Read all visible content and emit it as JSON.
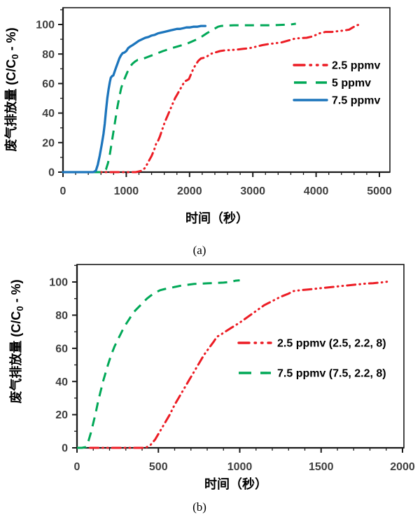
{
  "page": {
    "background": "#ffffff"
  },
  "chart_data": [
    {
      "id": "a",
      "type": "line",
      "caption": "(a)",
      "xlabel": "时间（秒）",
      "ylabel": "废气排放量 (C/C0 - %)",
      "ylabel_rich": {
        "pre": "废气排放量 (C/C",
        "sub": "0",
        "post": " - %)"
      },
      "xlim": [
        0,
        5170
      ],
      "ylim": [
        0,
        110
      ],
      "x_ticks": [
        0,
        1000,
        2000,
        3000,
        4000,
        5000
      ],
      "y_ticks": [
        0,
        20,
        40,
        60,
        80,
        100
      ],
      "x_minor_step": 200,
      "y_minor_step": 10,
      "grid": false,
      "legend_position": "inside-right",
      "axis_color": "#1a1a1a",
      "tick_label_color": "#3f3f3f",
      "label_color": "#000000",
      "series": [
        {
          "name": "2.5 ppmv",
          "color": "#EC1C24",
          "dash": "dash-dot-dot",
          "points": [
            [
              400,
              0
            ],
            [
              600,
              0
            ],
            [
              800,
              0
            ],
            [
              1000,
              0
            ],
            [
              1150,
              0
            ],
            [
              1250,
              1
            ],
            [
              1300,
              3
            ],
            [
              1350,
              7
            ],
            [
              1400,
              11
            ],
            [
              1440,
              15
            ],
            [
              1470,
              19
            ],
            [
              1490,
              20
            ],
            [
              1530,
              24
            ],
            [
              1570,
              29
            ],
            [
              1610,
              34
            ],
            [
              1650,
              38
            ],
            [
              1690,
              42
            ],
            [
              1730,
              46
            ],
            [
              1770,
              50
            ],
            [
              1810,
              53
            ],
            [
              1850,
              56
            ],
            [
              1890,
              59
            ],
            [
              1920,
              61.5
            ],
            [
              1950,
              62
            ],
            [
              1990,
              63
            ],
            [
              2020,
              66
            ],
            [
              2060,
              70
            ],
            [
              2100,
              73
            ],
            [
              2140,
              75.5
            ],
            [
              2180,
              77
            ],
            [
              2230,
              77.5
            ],
            [
              2280,
              78.5
            ],
            [
              2330,
              80
            ],
            [
              2400,
              81
            ],
            [
              2480,
              82
            ],
            [
              2560,
              82.5
            ],
            [
              2650,
              82.7
            ],
            [
              2750,
              83
            ],
            [
              2850,
              83.5
            ],
            [
              2950,
              84
            ],
            [
              3050,
              85
            ],
            [
              3150,
              86
            ],
            [
              3250,
              86.8
            ],
            [
              3350,
              87.3
            ],
            [
              3450,
              87.8
            ],
            [
              3550,
              89
            ],
            [
              3650,
              90.3
            ],
            [
              3750,
              90.8
            ],
            [
              3850,
              91
            ],
            [
              3950,
              92
            ],
            [
              4050,
              94
            ],
            [
              4150,
              95
            ],
            [
              4250,
              95
            ],
            [
              4350,
              95.5
            ],
            [
              4450,
              96
            ],
            [
              4520,
              96.5
            ],
            [
              4580,
              98
            ],
            [
              4640,
              99.5
            ],
            [
              4700,
              100
            ]
          ]
        },
        {
          "name": "5 ppmv",
          "color": "#00A857",
          "dash": "dashed",
          "points": [
            [
              450,
              0
            ],
            [
              550,
              0
            ],
            [
              640,
              0
            ],
            [
              680,
              2
            ],
            [
              710,
              6
            ],
            [
              740,
              12
            ],
            [
              770,
              20
            ],
            [
              800,
              28
            ],
            [
              830,
              36
            ],
            [
              860,
              44
            ],
            [
              890,
              51
            ],
            [
              920,
              57
            ],
            [
              950,
              61
            ],
            [
              980,
              64
            ],
            [
              1010,
              67
            ],
            [
              1040,
              70
            ],
            [
              1070,
              72
            ],
            [
              1100,
              73.5
            ],
            [
              1140,
              75
            ],
            [
              1180,
              76
            ],
            [
              1230,
              76.5
            ],
            [
              1280,
              77
            ],
            [
              1340,
              78
            ],
            [
              1400,
              79
            ],
            [
              1460,
              80
            ],
            [
              1520,
              81
            ],
            [
              1580,
              82
            ],
            [
              1650,
              83
            ],
            [
              1720,
              84
            ],
            [
              1800,
              85
            ],
            [
              1880,
              86
            ],
            [
              1960,
              87
            ],
            [
              2040,
              88.5
            ],
            [
              2120,
              90
            ],
            [
              2200,
              92
            ],
            [
              2270,
              94
            ],
            [
              2330,
              95.5
            ],
            [
              2390,
              97
            ],
            [
              2450,
              98.5
            ],
            [
              2500,
              99
            ],
            [
              2600,
              99.3
            ],
            [
              2700,
              99.5
            ],
            [
              2900,
              99.5
            ],
            [
              3100,
              99.5
            ],
            [
              3300,
              99.5
            ],
            [
              3400,
              99.6
            ],
            [
              3500,
              99.8
            ],
            [
              3600,
              100
            ],
            [
              3680,
              100.5
            ]
          ]
        },
        {
          "name": "7.5 ppmv",
          "color": "#1C75BC",
          "dash": "solid",
          "points": [
            [
              0,
              0
            ],
            [
              150,
              0
            ],
            [
              300,
              0
            ],
            [
              400,
              0
            ],
            [
              480,
              0
            ],
            [
              520,
              1
            ],
            [
              550,
              5
            ],
            [
              580,
              11
            ],
            [
              610,
              18
            ],
            [
              640,
              26
            ],
            [
              660,
              33
            ],
            [
              680,
              42
            ],
            [
              700,
              50
            ],
            [
              720,
              56
            ],
            [
              740,
              61
            ],
            [
              755,
              64
            ],
            [
              775,
              65
            ],
            [
              795,
              65.5
            ],
            [
              815,
              68
            ],
            [
              840,
              71
            ],
            [
              865,
              74
            ],
            [
              890,
              77
            ],
            [
              915,
              79
            ],
            [
              940,
              80.5
            ],
            [
              970,
              81
            ],
            [
              1000,
              82
            ],
            [
              1030,
              84
            ],
            [
              1060,
              85
            ],
            [
              1100,
              86
            ],
            [
              1150,
              87.5
            ],
            [
              1200,
              89
            ],
            [
              1250,
              90
            ],
            [
              1300,
              91
            ],
            [
              1350,
              91.5
            ],
            [
              1400,
              92.5
            ],
            [
              1450,
              93
            ],
            [
              1500,
              94
            ],
            [
              1550,
              94.5
            ],
            [
              1600,
              95
            ],
            [
              1650,
              95.5
            ],
            [
              1700,
              96
            ],
            [
              1750,
              96.5
            ],
            [
              1800,
              97
            ],
            [
              1850,
              97
            ],
            [
              1900,
              97.5
            ],
            [
              1950,
              98
            ],
            [
              2000,
              98
            ],
            [
              2060,
              98.5
            ],
            [
              2120,
              98.5
            ],
            [
              2180,
              99
            ],
            [
              2250,
              99
            ]
          ]
        }
      ]
    },
    {
      "id": "b",
      "type": "line",
      "caption": "(b)",
      "xlabel": "时间（秒）",
      "ylabel": "废气排放量 (C/C0 - %)",
      "ylabel_rich": {
        "pre": "废气排放量 (C/C",
        "sub": "0",
        "post": " - %)"
      },
      "xlim": [
        0,
        2008
      ],
      "ylim": [
        0,
        110
      ],
      "x_ticks": [
        0,
        500,
        1000,
        1500,
        2000
      ],
      "y_ticks": [
        0,
        20,
        40,
        60,
        80,
        100
      ],
      "x_minor_step": 100,
      "y_minor_step": 10,
      "grid": false,
      "legend_position": "inside-right",
      "axis_color": "#1a1a1a",
      "tick_label_color": "#3f3f3f",
      "label_color": "#000000",
      "series": [
        {
          "name": "2.5 ppmv (2.5, 2.2, 8)",
          "color": "#EC1C24",
          "dash": "dash-dot-dot",
          "points": [
            [
              80,
              0
            ],
            [
              150,
              0
            ],
            [
              250,
              0
            ],
            [
              350,
              0
            ],
            [
              420,
              0
            ],
            [
              450,
              1.5
            ],
            [
              480,
              5
            ],
            [
              510,
              10
            ],
            [
              540,
              15
            ],
            [
              570,
              20
            ],
            [
              600,
              26
            ],
            [
              630,
              31
            ],
            [
              660,
              36
            ],
            [
              690,
              41
            ],
            [
              720,
              46
            ],
            [
              750,
              51
            ],
            [
              780,
              56
            ],
            [
              810,
              60
            ],
            [
              840,
              64
            ],
            [
              860,
              67
            ],
            [
              880,
              68
            ],
            [
              910,
              70
            ],
            [
              950,
              72.5
            ],
            [
              1000,
              75.5
            ],
            [
              1050,
              79
            ],
            [
              1100,
              82.5
            ],
            [
              1150,
              86
            ],
            [
              1200,
              88.5
            ],
            [
              1250,
              91
            ],
            [
              1300,
              93
            ],
            [
              1330,
              94.5
            ],
            [
              1370,
              95
            ],
            [
              1420,
              95.5
            ],
            [
              1470,
              96
            ],
            [
              1520,
              96.5
            ],
            [
              1570,
              97
            ],
            [
              1620,
              97.5
            ],
            [
              1670,
              98
            ],
            [
              1720,
              98.5
            ],
            [
              1770,
              99
            ],
            [
              1820,
              99.3
            ],
            [
              1870,
              99.7
            ],
            [
              1910,
              100.2
            ]
          ]
        },
        {
          "name": "7.5 ppmv (7.5, 2.2, 8)",
          "color": "#00A857",
          "dash": "dashed",
          "points": [
            [
              0,
              0
            ],
            [
              30,
              0
            ],
            [
              55,
              0.5
            ],
            [
              70,
              4
            ],
            [
              85,
              9
            ],
            [
              100,
              15
            ],
            [
              115,
              21
            ],
            [
              130,
              28
            ],
            [
              145,
              34
            ],
            [
              160,
              40
            ],
            [
              175,
              45
            ],
            [
              190,
              50
            ],
            [
              210,
              56
            ],
            [
              230,
              61
            ],
            [
              250,
              65
            ],
            [
              270,
              69
            ],
            [
              290,
              73
            ],
            [
              310,
              76
            ],
            [
              330,
              79
            ],
            [
              350,
              82
            ],
            [
              370,
              84
            ],
            [
              390,
              86
            ],
            [
              410,
              88
            ],
            [
              430,
              90
            ],
            [
              450,
              91.5
            ],
            [
              470,
              93
            ],
            [
              490,
              94
            ],
            [
              510,
              95
            ],
            [
              540,
              95.8
            ],
            [
              570,
              96.3
            ],
            [
              600,
              97
            ],
            [
              640,
              97.8
            ],
            [
              680,
              98.3
            ],
            [
              720,
              98.8
            ],
            [
              760,
              99
            ],
            [
              800,
              99.2
            ],
            [
              850,
              99.4
            ],
            [
              900,
              99.6
            ],
            [
              940,
              100
            ],
            [
              975,
              100.8
            ],
            [
              1000,
              101
            ]
          ]
        }
      ]
    }
  ]
}
